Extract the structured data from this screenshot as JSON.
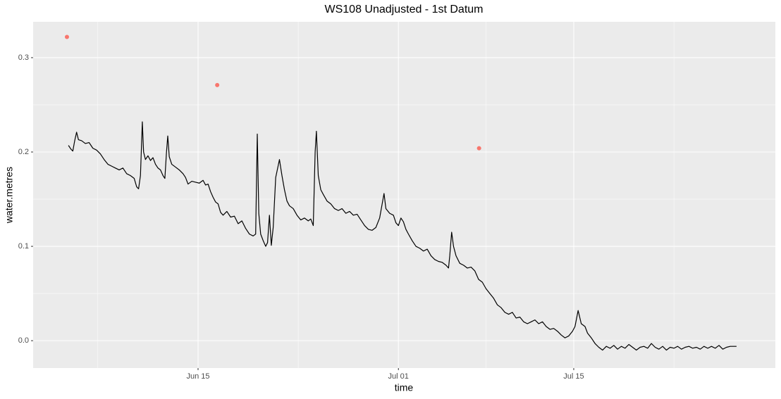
{
  "chart_data": {
    "type": "line",
    "title": "WS108 Unadjusted - 1st Datum",
    "x_label": "time",
    "y_label": "water.metres",
    "xlim": [
      1.83,
      61.1
    ],
    "ylim": [
      -0.029,
      0.338
    ],
    "xticks": [
      {
        "value": 15,
        "label": "Jun 15"
      },
      {
        "value": 31,
        "label": "Jul 01"
      },
      {
        "value": 45,
        "label": "Jul 15"
      }
    ],
    "xminor": [
      7,
      23,
      38,
      53
    ],
    "yticks": [
      {
        "value": 0,
        "label": "0.0"
      },
      0.1,
      0.2,
      0.3
    ],
    "yminor": [
      0.05,
      0.15,
      0.25
    ],
    "grid": true,
    "background": "#ebebeb",
    "series": [
      {
        "type": "line",
        "color": "#000000",
        "x": [
          4.65,
          4.85,
          5.0,
          5.15,
          5.3,
          5.45,
          5.7,
          6.0,
          6.3,
          6.6,
          6.9,
          7.2,
          7.5,
          7.8,
          8.1,
          8.4,
          8.7,
          9.0,
          9.3,
          9.6,
          9.9,
          10.1,
          10.25,
          10.4,
          10.55,
          10.65,
          10.8,
          11.0,
          11.2,
          11.4,
          11.6,
          11.8,
          12.0,
          12.2,
          12.35,
          12.48,
          12.58,
          12.7,
          12.9,
          13.2,
          13.5,
          13.8,
          14.0,
          14.2,
          14.5,
          14.8,
          15.1,
          15.4,
          15.6,
          15.8,
          16.0,
          16.2,
          16.4,
          16.6,
          16.8,
          17.0,
          17.3,
          17.6,
          17.9,
          18.2,
          18.5,
          18.8,
          19.1,
          19.4,
          19.6,
          19.73,
          19.85,
          20.0,
          20.2,
          20.4,
          20.55,
          20.7,
          20.85,
          21.0,
          21.2,
          21.5,
          21.7,
          21.9,
          22.1,
          22.3,
          22.6,
          22.9,
          23.2,
          23.5,
          23.8,
          24.0,
          24.2,
          24.35,
          24.45,
          24.6,
          24.8,
          25.0,
          25.3,
          25.6,
          25.9,
          26.2,
          26.5,
          26.8,
          27.1,
          27.4,
          27.7,
          28.0,
          28.3,
          28.6,
          28.9,
          29.2,
          29.5,
          29.85,
          30.0,
          30.3,
          30.6,
          30.8,
          31.0,
          31.2,
          31.4,
          31.6,
          31.8,
          32.1,
          32.4,
          32.7,
          33.0,
          33.3,
          33.6,
          33.9,
          34.2,
          34.5,
          34.8,
          35.0,
          35.1,
          35.25,
          35.4,
          35.6,
          35.9,
          36.2,
          36.5,
          36.8,
          37.1,
          37.4,
          37.7,
          38.0,
          38.3,
          38.6,
          38.9,
          39.2,
          39.5,
          39.8,
          40.1,
          40.4,
          40.7,
          41.0,
          41.3,
          41.6,
          41.9,
          42.2,
          42.5,
          42.8,
          43.1,
          43.4,
          43.7,
          44.0,
          44.3,
          44.6,
          44.9,
          45.1,
          45.35,
          45.6,
          45.9,
          46.1,
          46.4,
          46.7,
          47.0,
          47.3,
          47.6,
          47.9,
          48.2,
          48.5,
          48.8,
          49.1,
          49.4,
          49.7,
          50.0,
          50.3,
          50.6,
          50.9,
          51.2,
          51.5,
          51.8,
          52.1,
          52.4,
          52.7,
          53.0,
          53.3,
          53.6,
          53.9,
          54.2,
          54.5,
          54.8,
          55.1,
          55.4,
          55.7,
          56.0,
          56.3,
          56.6,
          56.9,
          57.2,
          57.5,
          57.8,
          58.0
        ],
        "values": [
          0.207,
          0.203,
          0.201,
          0.212,
          0.221,
          0.213,
          0.212,
          0.209,
          0.21,
          0.204,
          0.202,
          0.198,
          0.192,
          0.187,
          0.185,
          0.183,
          0.181,
          0.183,
          0.177,
          0.175,
          0.172,
          0.163,
          0.161,
          0.175,
          0.232,
          0.2,
          0.192,
          0.196,
          0.191,
          0.194,
          0.187,
          0.183,
          0.181,
          0.175,
          0.172,
          0.2,
          0.217,
          0.195,
          0.187,
          0.184,
          0.181,
          0.177,
          0.173,
          0.166,
          0.169,
          0.168,
          0.167,
          0.17,
          0.165,
          0.166,
          0.158,
          0.152,
          0.147,
          0.145,
          0.136,
          0.133,
          0.137,
          0.131,
          0.132,
          0.124,
          0.127,
          0.119,
          0.113,
          0.111,
          0.113,
          0.219,
          0.135,
          0.113,
          0.106,
          0.1,
          0.104,
          0.133,
          0.101,
          0.12,
          0.173,
          0.192,
          0.175,
          0.16,
          0.148,
          0.143,
          0.14,
          0.133,
          0.128,
          0.13,
          0.127,
          0.129,
          0.122,
          0.2,
          0.222,
          0.175,
          0.16,
          0.155,
          0.148,
          0.145,
          0.14,
          0.138,
          0.14,
          0.135,
          0.137,
          0.133,
          0.134,
          0.128,
          0.122,
          0.118,
          0.117,
          0.12,
          0.13,
          0.156,
          0.14,
          0.135,
          0.133,
          0.125,
          0.122,
          0.13,
          0.126,
          0.118,
          0.113,
          0.106,
          0.1,
          0.098,
          0.095,
          0.097,
          0.09,
          0.086,
          0.084,
          0.083,
          0.08,
          0.077,
          0.09,
          0.115,
          0.1,
          0.09,
          0.082,
          0.08,
          0.077,
          0.078,
          0.074,
          0.065,
          0.062,
          0.055,
          0.05,
          0.045,
          0.038,
          0.035,
          0.03,
          0.028,
          0.03,
          0.024,
          0.025,
          0.02,
          0.018,
          0.02,
          0.022,
          0.018,
          0.02,
          0.015,
          0.012,
          0.013,
          0.01,
          0.006,
          0.003,
          0.005,
          0.01,
          0.015,
          0.032,
          0.018,
          0.015,
          0.008,
          0.003,
          -0.003,
          -0.007,
          -0.01,
          -0.006,
          -0.008,
          -0.005,
          -0.009,
          -0.006,
          -0.008,
          -0.004,
          -0.007,
          -0.01,
          -0.007,
          -0.006,
          -0.008,
          -0.003,
          -0.007,
          -0.009,
          -0.006,
          -0.01,
          -0.007,
          -0.008,
          -0.006,
          -0.009,
          -0.007,
          -0.006,
          -0.008,
          -0.007,
          -0.009,
          -0.006,
          -0.008,
          -0.006,
          -0.008,
          -0.005,
          -0.009,
          -0.007,
          -0.006,
          -0.006,
          -0.006
        ]
      },
      {
        "type": "scatter",
        "color": "#f8766d",
        "x": [
          4.53,
          16.53,
          37.44
        ],
        "values": [
          0.322,
          0.271,
          0.204
        ]
      }
    ]
  }
}
